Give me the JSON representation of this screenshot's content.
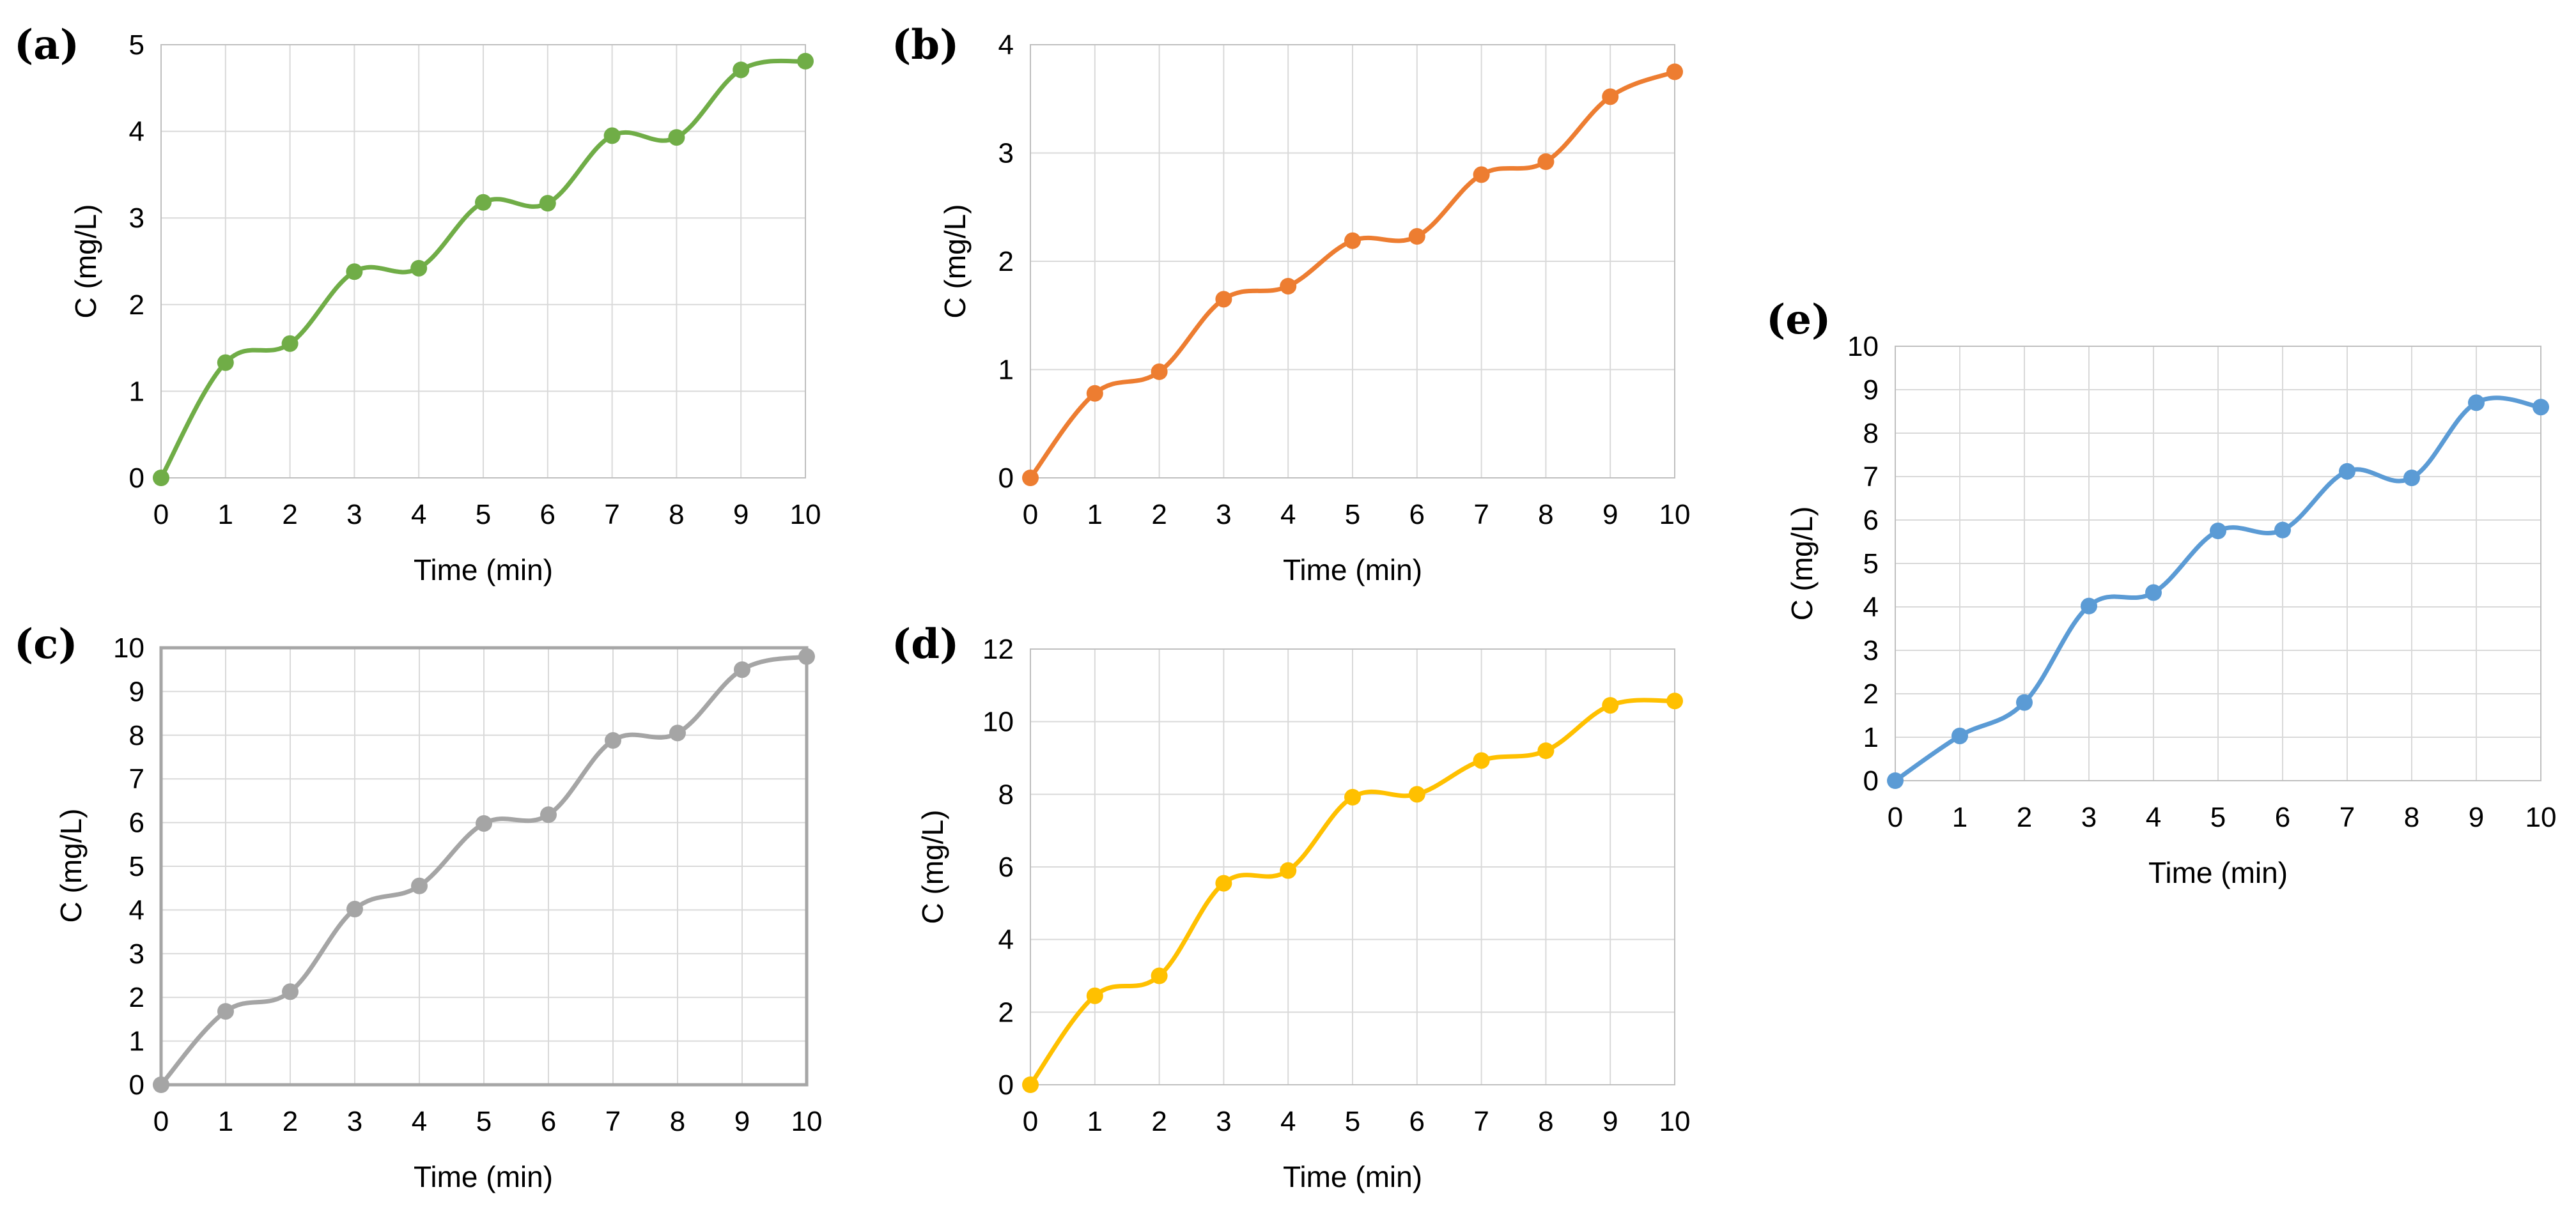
{
  "chart_data": [
    {
      "id": "a",
      "type": "line",
      "panel_label": "(a)",
      "title": "",
      "xlabel": "Time (min)",
      "ylabel": "C (mg/L)",
      "x": [
        0,
        1,
        2,
        3,
        4,
        5,
        6,
        7,
        8,
        9,
        10
      ],
      "xticks": [
        "0",
        "1",
        "2",
        "3",
        "4",
        "5",
        "6",
        "7",
        "8",
        "9",
        "10"
      ],
      "ylim": [
        0,
        5
      ],
      "yticks": [
        "0",
        "1",
        "2",
        "3",
        "4",
        "5"
      ],
      "grid": true,
      "series": [
        {
          "name": "C",
          "color": "#70ad47",
          "values": [
            0,
            1.33,
            1.55,
            2.38,
            2.42,
            3.18,
            3.17,
            3.95,
            3.93,
            4.71,
            4.81
          ]
        }
      ]
    },
    {
      "id": "b",
      "type": "line",
      "panel_label": "(b)",
      "title": "",
      "xlabel": "Time (min)",
      "ylabel": "C (mg/L)",
      "x": [
        0,
        1,
        2,
        3,
        4,
        5,
        6,
        7,
        8,
        9,
        10
      ],
      "xticks": [
        "0",
        "1",
        "2",
        "3",
        "4",
        "5",
        "6",
        "7",
        "8",
        "9",
        "10"
      ],
      "ylim": [
        0,
        4
      ],
      "yticks": [
        "0",
        "1",
        "2",
        "3",
        "4"
      ],
      "grid": true,
      "series": [
        {
          "name": "C",
          "color": "#ed7d31",
          "values": [
            0,
            0.78,
            0.98,
            1.65,
            1.77,
            2.19,
            2.23,
            2.8,
            2.92,
            3.52,
            3.75
          ]
        }
      ]
    },
    {
      "id": "c",
      "type": "line",
      "panel_label": "(c)",
      "title": "",
      "xlabel": "Time (min)",
      "ylabel": "C (mg/L)",
      "x": [
        0,
        1,
        2,
        3,
        4,
        5,
        6,
        7,
        8,
        9,
        10
      ],
      "xticks": [
        "0",
        "1",
        "2",
        "3",
        "4",
        "5",
        "6",
        "7",
        "8",
        "9",
        "10"
      ],
      "ylim": [
        0,
        10
      ],
      "yticks": [
        "0",
        "1",
        "2",
        "3",
        "4",
        "5",
        "6",
        "7",
        "8",
        "9",
        "10"
      ],
      "grid": true,
      "series": [
        {
          "name": "C",
          "color": "#a5a5a5",
          "values": [
            0,
            1.68,
            2.13,
            4.02,
            4.55,
            5.98,
            6.18,
            7.88,
            8.05,
            9.5,
            9.8
          ]
        }
      ]
    },
    {
      "id": "d",
      "type": "line",
      "panel_label": "(d)",
      "title": "",
      "xlabel": "Time (min)",
      "ylabel": "C (mg/L)",
      "x": [
        0,
        1,
        2,
        3,
        4,
        5,
        6,
        7,
        8,
        9,
        10
      ],
      "xticks": [
        "0",
        "1",
        "2",
        "3",
        "4",
        "5",
        "6",
        "7",
        "8",
        "9",
        "10"
      ],
      "ylim": [
        0,
        12
      ],
      "yticks": [
        "0",
        "2",
        "4",
        "6",
        "8",
        "10",
        "12"
      ],
      "grid": true,
      "series": [
        {
          "name": "C",
          "color": "#ffc000",
          "values": [
            0,
            2.45,
            3.0,
            5.55,
            5.9,
            7.92,
            8.0,
            8.93,
            9.2,
            10.45,
            10.57
          ]
        }
      ]
    },
    {
      "id": "e",
      "type": "line",
      "panel_label": "(e)",
      "title": "",
      "xlabel": "Time (min)",
      "ylabel": "C (mg/L)",
      "x": [
        0,
        1,
        2,
        3,
        4,
        5,
        6,
        7,
        8,
        9,
        10
      ],
      "xticks": [
        "0",
        "1",
        "2",
        "3",
        "4",
        "5",
        "6",
        "7",
        "8",
        "9",
        "10"
      ],
      "ylim": [
        0,
        10
      ],
      "yticks": [
        "0",
        "1",
        "2",
        "3",
        "4",
        "5",
        "6",
        "7",
        "8",
        "9",
        "10"
      ],
      "grid": true,
      "series": [
        {
          "name": "C",
          "color": "#5b9bd5",
          "values": [
            0,
            1.03,
            1.8,
            4.02,
            4.33,
            5.75,
            5.77,
            7.12,
            6.97,
            8.7,
            8.6
          ]
        }
      ]
    }
  ]
}
